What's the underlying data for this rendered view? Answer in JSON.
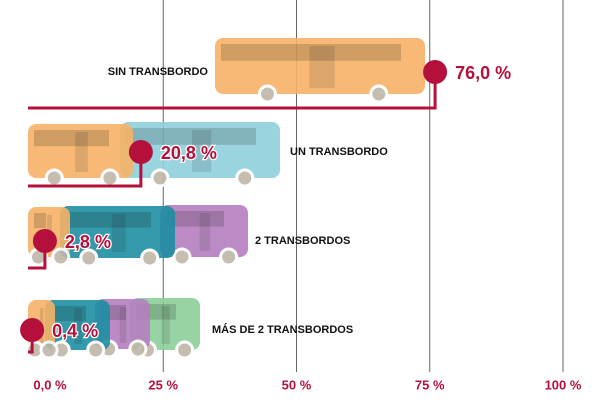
{
  "chart_data": {
    "type": "lollipop",
    "categories": [
      "SIN TRANSBORDO",
      "UN TRANSBORDO",
      "2 TRANSBORDOS",
      "MÁS DE 2 TRANSBORDOS"
    ],
    "values": [
      76.0,
      20.8,
      2.8,
      0.4
    ],
    "value_labels": [
      "76,0 %",
      "20,8 %",
      "2,8 %",
      "0,4 %"
    ],
    "color": "#b5103c",
    "xlim": [
      0,
      100
    ],
    "xticks": [
      {
        "value": 0,
        "label": "0,0 %"
      },
      {
        "value": 25,
        "label": "25 %"
      },
      {
        "value": 50,
        "label": "50 %"
      },
      {
        "value": 75,
        "label": "75 %"
      },
      {
        "value": 100,
        "label": "100 %"
      }
    ],
    "grid": true
  }
}
